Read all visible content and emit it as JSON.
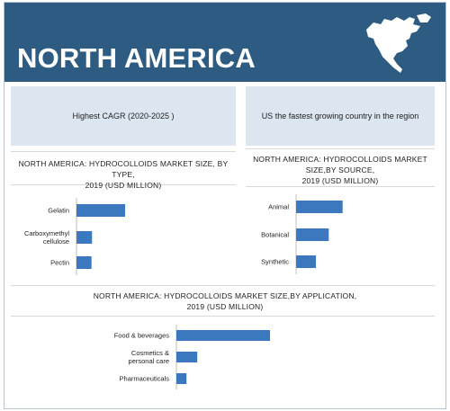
{
  "header": {
    "title": "NORTH AMERICA",
    "map_icon": "north-america-map-icon"
  },
  "highlights": {
    "box1": "Highest CAGR (2020-2025 )",
    "box2": "US the fastest growing country in the region"
  },
  "colors": {
    "header_bg": "#2e5b82",
    "bar": "#3b78bd",
    "box_bg": "#dce6f1"
  },
  "chart_data": [
    {
      "type": "bar",
      "orientation": "horizontal",
      "title_lines": [
        "NORTH AMERICA: HYDROCOLLOIDS MARKET SIZE, BY TYPE,",
        "2019 (USD MILLION)"
      ],
      "categories": [
        [
          "Gelatin"
        ],
        [
          "Carboxymethyl",
          "cellulose"
        ],
        [
          "Pectin"
        ]
      ],
      "values": [
        470,
        150,
        145
      ],
      "xlim": [
        0,
        1000
      ]
    },
    {
      "type": "bar",
      "orientation": "horizontal",
      "title_lines": [
        "NORTH AMERICA: HYDROCOLLOIDS MARKET",
        "SIZE,BY SOURCE,",
        "2019 (USD MILLION)"
      ],
      "categories": [
        [
          "Animal"
        ],
        [
          "Botanical"
        ],
        [
          "Synthetic"
        ]
      ],
      "values": [
        470,
        330,
        200
      ],
      "xlim": [
        0,
        1000
      ]
    },
    {
      "type": "bar",
      "orientation": "horizontal",
      "title_lines": [
        "NORTH AMERICA: HYDROCOLLOIDS MARKET SIZE,BY APPLICATION,",
        "2019 (USD MILLION)"
      ],
      "categories": [
        [
          "Food & beverages"
        ],
        [
          "Cosmetics &",
          "personal care"
        ],
        [
          "Pharmaceuticals"
        ]
      ],
      "values": [
        650,
        145,
        70
      ],
      "xlim": [
        0,
        1000
      ]
    }
  ]
}
